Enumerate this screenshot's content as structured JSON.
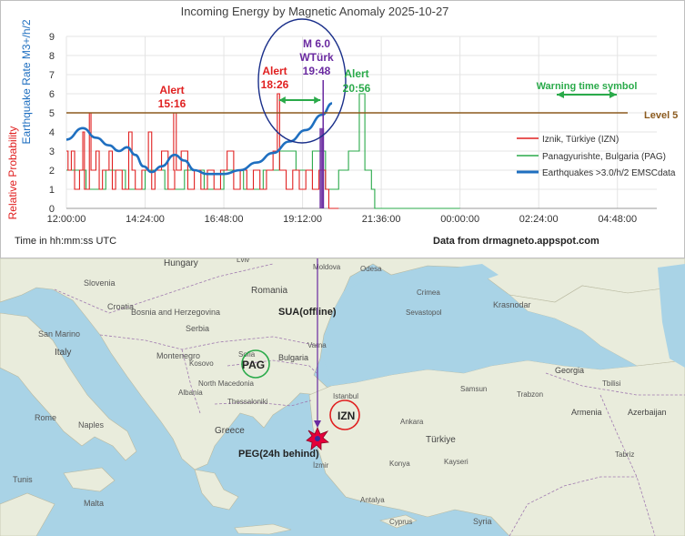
{
  "chart_data": {
    "type": "line",
    "title": "Incoming Energy by Magnetic Anomaly 2025-10-27",
    "ylabel_left_red": "Relative Probability",
    "ylabel_left_blue": "Earthquake Rate M3+/h/2",
    "xlabel": "Time in hh:mm:ss UTC",
    "source": "Data from drmagneto.appspot.com",
    "ylim": [
      0,
      9
    ],
    "yticks": [
      "0",
      "1",
      "2",
      "3",
      "4",
      "5",
      "6",
      "7",
      "8",
      "9"
    ],
    "xticks": [
      "12:00:00",
      "14:24:00",
      "16:48:00",
      "19:12:00",
      "21:36:00",
      "00:00:00",
      "02:24:00",
      "04:48:00"
    ],
    "x_range_hours": [
      12,
      30
    ],
    "level": {
      "label": "Level 5",
      "value": 5.0,
      "color": "#8b5a1e"
    },
    "legend": [
      {
        "name": "Iznik, Türkiye (IZN)",
        "color": "#e02020"
      },
      {
        "name": "Panagyurishte, Bulgaria (PAG)",
        "color": "#2aaa4a"
      },
      {
        "name": "Earthquakes >3.0/h/2 EMSCdata",
        "color": "#1f6fc0"
      }
    ],
    "series": [
      {
        "name": "Iznik, Türkiye (IZN)",
        "color": "#e02020",
        "points": [
          [
            12.0,
            3
          ],
          [
            12.05,
            2
          ],
          [
            12.15,
            3
          ],
          [
            12.25,
            1
          ],
          [
            12.4,
            2
          ],
          [
            12.5,
            4
          ],
          [
            12.55,
            1
          ],
          [
            12.7,
            5
          ],
          [
            12.75,
            2
          ],
          [
            12.9,
            3
          ],
          [
            13.0,
            1
          ],
          [
            13.1,
            2
          ],
          [
            13.3,
            3
          ],
          [
            13.4,
            1
          ],
          [
            13.5,
            2
          ],
          [
            13.7,
            1
          ],
          [
            13.9,
            4
          ],
          [
            14.0,
            2
          ],
          [
            14.1,
            1
          ],
          [
            14.3,
            2
          ],
          [
            14.5,
            4
          ],
          [
            14.6,
            1
          ],
          [
            14.7,
            2
          ],
          [
            14.9,
            3
          ],
          [
            15.1,
            1
          ],
          [
            15.3,
            2
          ],
          [
            15.27,
            5
          ],
          [
            15.35,
            2
          ],
          [
            15.5,
            3
          ],
          [
            15.7,
            1
          ],
          [
            15.9,
            2
          ],
          [
            16.1,
            1
          ],
          [
            16.3,
            2
          ],
          [
            16.5,
            1
          ],
          [
            16.7,
            2
          ],
          [
            16.9,
            3
          ],
          [
            17.1,
            1
          ],
          [
            17.3,
            2
          ],
          [
            17.5,
            1
          ],
          [
            17.7,
            2
          ],
          [
            17.9,
            1
          ],
          [
            18.1,
            2
          ],
          [
            18.3,
            3
          ],
          [
            18.43,
            6
          ],
          [
            18.5,
            2
          ],
          [
            18.7,
            1
          ],
          [
            18.9,
            2
          ],
          [
            19.1,
            1
          ],
          [
            19.3,
            2
          ],
          [
            19.5,
            1
          ],
          [
            19.7,
            2
          ],
          [
            19.9,
            1
          ],
          [
            20.0,
            0
          ],
          [
            20.3,
            0
          ]
        ]
      },
      {
        "name": "Panagyurishte, Bulgaria (PAG)",
        "color": "#2aaa4a",
        "points": [
          [
            12.0,
            2
          ],
          [
            12.6,
            1
          ],
          [
            13.2,
            2
          ],
          [
            13.8,
            1
          ],
          [
            14.4,
            2
          ],
          [
            15.0,
            1
          ],
          [
            15.6,
            2
          ],
          [
            16.2,
            1
          ],
          [
            16.8,
            2
          ],
          [
            17.4,
            1
          ],
          [
            18.0,
            2
          ],
          [
            18.5,
            3
          ],
          [
            19.0,
            2
          ],
          [
            19.5,
            3
          ],
          [
            19.9,
            1
          ],
          [
            20.3,
            2
          ],
          [
            20.6,
            3
          ],
          [
            20.93,
            6
          ],
          [
            21.1,
            2
          ],
          [
            21.3,
            1
          ],
          [
            21.4,
            0
          ],
          [
            24.0,
            0
          ]
        ]
      },
      {
        "name": "Earthquakes >3.0/h/2 EMSCdata",
        "color": "#1f6fc0",
        "points": [
          [
            12.0,
            3.6
          ],
          [
            12.5,
            4.2
          ],
          [
            12.9,
            3.7
          ],
          [
            13.3,
            3.3
          ],
          [
            13.6,
            3.0
          ],
          [
            13.85,
            3.2
          ],
          [
            14.1,
            2.8
          ],
          [
            14.35,
            2.2
          ],
          [
            14.6,
            1.9
          ],
          [
            14.9,
            2.2
          ],
          [
            15.3,
            2.8
          ],
          [
            15.6,
            2.5
          ],
          [
            15.9,
            2.0
          ],
          [
            16.3,
            1.8
          ],
          [
            16.8,
            1.8
          ],
          [
            17.3,
            2.0
          ],
          [
            17.8,
            2.4
          ],
          [
            18.3,
            2.9
          ],
          [
            18.8,
            3.5
          ],
          [
            19.3,
            4.1
          ],
          [
            19.8,
            4.9
          ],
          [
            20.1,
            5.5
          ]
        ]
      }
    ],
    "alerts": [
      {
        "label": "Alert",
        "time": "15:16",
        "x": 15.27,
        "y": 5,
        "color": "#e02020"
      },
      {
        "label": "Alert",
        "time": "18:26",
        "x": 18.43,
        "y": 6,
        "color": "#e02020"
      },
      {
        "label": "Alert",
        "time": "20:56",
        "x": 20.93,
        "y": 6,
        "color": "#2aaa4a"
      }
    ],
    "quake": {
      "magnitude": "M 6.0",
      "region": "WTürk",
      "time": "19:48",
      "x": 19.8,
      "color": "#6a2aa0"
    },
    "warning_time_label": "Warning time symbol"
  },
  "map": {
    "labels": {
      "hungary": "Hungary",
      "romania": "Romania",
      "slovenia": "Slovenia",
      "croatia": "Croatia",
      "bosnia": "Bosnia and Herzegovina",
      "serbia": "Serbia",
      "san_marino": "San Marino",
      "montenegro": "Montenegro",
      "kosovo": "Kosovo",
      "italy": "Italy",
      "albania": "Albania",
      "north_macedonia": "North Macedonia",
      "thessaloniki": "Thessaloniki",
      "greece": "Greece",
      "rome": "Rome",
      "naples": "Naples",
      "malta": "Malta",
      "tunis": "Tunis",
      "istanbul": "Istanbul",
      "ankara": "Ankara",
      "turkiye": "Türkiye",
      "konya": "Konya",
      "moldova": "Moldova",
      "odesa": "Odesa",
      "crimea": "Crimea",
      "sevastopol": "Sevastopol",
      "krasnodar": "Krasnodar",
      "georgia": "Georgia",
      "tbilisi": "Tbilisi",
      "armenia": "Armenia",
      "azerbaijan": "Azerbaijan",
      "samsun": "Samsun",
      "cyprus": "Cyprus",
      "syria": "Syria",
      "tabriz": "Tabriz",
      "lviv": "Lviv",
      "sofia": "Sofia",
      "varna": "Varna",
      "izmir": "İzmir",
      "antalya": "Antalya",
      "trabzon": "Trabzon",
      "kayseri": "Kayseri",
      "bulgaria": "Bulgaria"
    },
    "stations": {
      "sua": "SUA(offline)",
      "pag": "PAG",
      "izn": "IZN",
      "peg": "PEG(24h behind)"
    }
  }
}
